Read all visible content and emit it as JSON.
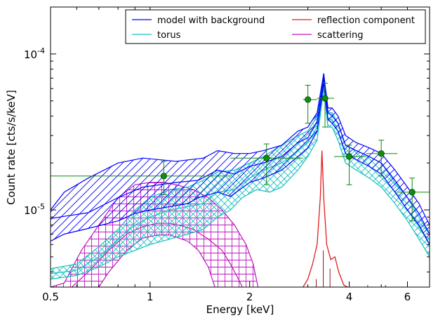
{
  "chart_data": {
    "type": "line",
    "xlabel": "Energy [keV]",
    "ylabel": "Count rate [cts/s/keV]",
    "xscale": "log",
    "yscale": "log",
    "xlim": [
      0.5,
      7.0
    ],
    "ylim": [
      3.2e-06,
      0.0002
    ],
    "x_ticks": [
      {
        "value": 0.5,
        "label": "0.5"
      },
      {
        "value": 1,
        "label": "1"
      },
      {
        "value": 2,
        "label": "2"
      },
      {
        "value": 4,
        "label": "4"
      },
      {
        "value": 6,
        "label": "6"
      }
    ],
    "y_ticks": [
      {
        "value": 1e-05,
        "base": "10",
        "exp": "-5"
      },
      {
        "value": 0.0001,
        "base": "10",
        "exp": "-4"
      }
    ],
    "legend_position": "top-right",
    "colors": {
      "model": "#0000ff",
      "torus": "#17bfbf",
      "reflection": "#e31b1b",
      "scattering": "#bf17bf",
      "data": "#0c8a0c",
      "thin_lines": "#8b1a1a"
    },
    "series": [
      {
        "name": "model with background",
        "band_upper": [
          [
            0.5,
            1e-05
          ],
          [
            0.55,
            1.3e-05
          ],
          [
            0.65,
            1.6e-05
          ],
          [
            0.8,
            2e-05
          ],
          [
            0.95,
            2.15e-05
          ],
          [
            1.2,
            2.05e-05
          ],
          [
            1.45,
            2.15e-05
          ],
          [
            1.6,
            2.4e-05
          ],
          [
            1.8,
            2.3e-05
          ],
          [
            2.0,
            2.3e-05
          ],
          [
            2.2,
            2.4e-05
          ],
          [
            2.5,
            2.6e-05
          ],
          [
            2.8,
            3.2e-05
          ],
          [
            3.0,
            3.4e-05
          ],
          [
            3.2,
            4.2e-05
          ],
          [
            3.35,
            7.5e-05
          ],
          [
            3.45,
            4.5e-05
          ],
          [
            3.55,
            4.5e-05
          ],
          [
            3.7,
            4e-05
          ],
          [
            3.9,
            3e-05
          ],
          [
            4.2,
            2.7e-05
          ],
          [
            4.6,
            2.5e-05
          ],
          [
            5.0,
            2.3e-05
          ],
          [
            5.5,
            1.8e-05
          ],
          [
            6.0,
            1.4e-05
          ],
          [
            6.5,
            1.1e-05
          ],
          [
            7.0,
            8e-06
          ]
        ],
        "band_lower": [
          [
            0.5,
            6.3e-06
          ],
          [
            0.55,
            7e-06
          ],
          [
            0.65,
            7.6e-06
          ],
          [
            0.8,
            8.5e-06
          ],
          [
            0.9,
            9.5e-06
          ],
          [
            1.0,
            1e-05
          ],
          [
            1.15,
            1.05e-05
          ],
          [
            1.3,
            1.1e-05
          ],
          [
            1.4,
            1.2e-05
          ],
          [
            1.6,
            1.3e-05
          ],
          [
            1.75,
            1.22e-05
          ],
          [
            2.0,
            1.5e-05
          ],
          [
            2.2,
            1.6e-05
          ],
          [
            2.5,
            1.8e-05
          ],
          [
            2.8,
            2.2e-05
          ],
          [
            3.0,
            2.5e-05
          ],
          [
            3.2,
            3.2e-05
          ],
          [
            3.35,
            6.5e-05
          ],
          [
            3.45,
            3.8e-05
          ],
          [
            3.55,
            3.6e-05
          ],
          [
            3.7,
            3.2e-05
          ],
          [
            3.9,
            2.3e-05
          ],
          [
            4.2,
            2.1e-05
          ],
          [
            4.6,
            1.9e-05
          ],
          [
            5.0,
            1.7e-05
          ],
          [
            5.5,
            1.3e-05
          ],
          [
            6.0,
            1e-05
          ],
          [
            6.5,
            8e-06
          ],
          [
            7.0,
            6e-06
          ]
        ],
        "median": [
          [
            0.5,
            8.8e-06
          ],
          [
            0.55,
            9.1e-06
          ],
          [
            0.65,
            9.6e-06
          ],
          [
            0.8,
            1.2e-05
          ],
          [
            0.95,
            1.4e-05
          ],
          [
            1.2,
            1.5e-05
          ],
          [
            1.4,
            1.55e-05
          ],
          [
            1.6,
            1.8e-05
          ],
          [
            1.8,
            1.7e-05
          ],
          [
            2.0,
            1.9e-05
          ],
          [
            2.2,
            2e-05
          ],
          [
            2.5,
            2.2e-05
          ],
          [
            2.8,
            2.7e-05
          ],
          [
            3.0,
            2.9e-05
          ],
          [
            3.2,
            3.7e-05
          ],
          [
            3.35,
            7e-05
          ],
          [
            3.45,
            4.2e-05
          ],
          [
            3.55,
            4e-05
          ],
          [
            3.7,
            3.6e-05
          ],
          [
            3.9,
            2.6e-05
          ],
          [
            4.2,
            2.4e-05
          ],
          [
            4.6,
            2.2e-05
          ],
          [
            5.0,
            2e-05
          ],
          [
            5.5,
            1.55e-05
          ],
          [
            6.0,
            1.2e-05
          ],
          [
            6.5,
            9.5e-06
          ],
          [
            7.0,
            7e-06
          ]
        ]
      },
      {
        "name": "torus",
        "band_upper": [
          [
            0.5,
            4.2e-06
          ],
          [
            0.6,
            4.5e-06
          ],
          [
            0.7,
            5.8e-06
          ],
          [
            0.8,
            7.5e-06
          ],
          [
            0.9,
            1e-05
          ],
          [
            1.0,
            1.2e-05
          ],
          [
            1.15,
            1.35e-05
          ],
          [
            1.3,
            1.4e-05
          ],
          [
            1.45,
            1.55e-05
          ],
          [
            1.6,
            1.75e-05
          ],
          [
            1.8,
            1.8e-05
          ],
          [
            2.0,
            2e-05
          ],
          [
            2.2,
            2.2e-05
          ],
          [
            2.5,
            2.6e-05
          ],
          [
            2.8,
            3e-05
          ],
          [
            3.0,
            3.2e-05
          ],
          [
            3.2,
            4e-05
          ],
          [
            3.35,
            7.5e-05
          ],
          [
            3.45,
            4.2e-05
          ],
          [
            3.55,
            4.2e-05
          ],
          [
            3.7,
            3.6e-05
          ],
          [
            3.9,
            2.6e-05
          ],
          [
            4.2,
            2.4e-05
          ],
          [
            4.6,
            2.2e-05
          ],
          [
            5.0,
            2e-05
          ],
          [
            5.5,
            1.5e-05
          ],
          [
            6.0,
            1.2e-05
          ],
          [
            6.5,
            9e-06
          ],
          [
            7.0,
            7e-06
          ]
        ],
        "band_lower": [
          [
            0.5,
            3.6e-06
          ],
          [
            0.6,
            3.8e-06
          ],
          [
            0.7,
            4.3e-06
          ],
          [
            0.8,
            5e-06
          ],
          [
            0.9,
            5.5e-06
          ],
          [
            1.0,
            6e-06
          ],
          [
            1.15,
            6.5e-06
          ],
          [
            1.3,
            7e-06
          ],
          [
            1.45,
            7.5e-06
          ],
          [
            1.6,
            9e-06
          ],
          [
            1.75,
            1e-05
          ],
          [
            1.9,
            1.2e-05
          ],
          [
            2.1,
            1.35e-05
          ],
          [
            2.3,
            1.3e-05
          ],
          [
            2.5,
            1.4e-05
          ],
          [
            2.8,
            1.8e-05
          ],
          [
            3.0,
            2.2e-05
          ],
          [
            3.2,
            2.8e-05
          ],
          [
            3.35,
            6e-05
          ],
          [
            3.45,
            3.4e-05
          ],
          [
            3.55,
            3.4e-05
          ],
          [
            3.7,
            2.8e-05
          ],
          [
            3.9,
            2e-05
          ],
          [
            4.2,
            1.8e-05
          ],
          [
            4.6,
            1.6e-05
          ],
          [
            5.0,
            1.4e-05
          ],
          [
            5.5,
            1.1e-05
          ],
          [
            6.0,
            8.5e-06
          ],
          [
            6.5,
            6.5e-06
          ],
          [
            7.0,
            5e-06
          ]
        ],
        "median": [
          [
            0.5,
            3.9e-06
          ],
          [
            0.6,
            4.1e-06
          ],
          [
            0.7,
            5e-06
          ],
          [
            0.8,
            6.5e-06
          ],
          [
            0.9,
            8e-06
          ],
          [
            1.0,
            9e-06
          ],
          [
            1.15,
            1e-05
          ],
          [
            1.3,
            1.05e-05
          ],
          [
            1.45,
            1.1e-05
          ],
          [
            1.6,
            1.3e-05
          ],
          [
            1.8,
            1.35e-05
          ],
          [
            2.0,
            1.6e-05
          ],
          [
            2.2,
            1.8e-05
          ],
          [
            2.5,
            2e-05
          ],
          [
            2.8,
            2.4e-05
          ],
          [
            3.0,
            2.7e-05
          ],
          [
            3.2,
            3.4e-05
          ],
          [
            3.35,
            6.8e-05
          ],
          [
            3.45,
            3.8e-05
          ],
          [
            3.55,
            3.8e-05
          ],
          [
            3.7,
            3.2e-05
          ],
          [
            3.9,
            2.3e-05
          ],
          [
            4.2,
            2.1e-05
          ],
          [
            4.6,
            1.9e-05
          ],
          [
            5.0,
            1.7e-05
          ],
          [
            5.5,
            1.3e-05
          ],
          [
            6.0,
            1e-05
          ],
          [
            6.5,
            7.8e-06
          ],
          [
            7.0,
            6e-06
          ]
        ]
      },
      {
        "name": "reflection component",
        "line": [
          [
            2.9,
            3.2e-06
          ],
          [
            3.0,
            3.6e-06
          ],
          [
            3.1,
            4.5e-06
          ],
          [
            3.2,
            6e-06
          ],
          [
            3.27,
            1.2e-05
          ],
          [
            3.31,
            2.4e-05
          ],
          [
            3.35,
            1.2e-05
          ],
          [
            3.42,
            6e-06
          ],
          [
            3.52,
            4.8e-06
          ],
          [
            3.62,
            5e-06
          ],
          [
            3.72,
            4e-06
          ],
          [
            3.85,
            3.3e-06
          ],
          [
            3.95,
            3.2e-06
          ]
        ]
      },
      {
        "name": "scattering",
        "band_upper": [
          [
            0.5,
            3.2e-06
          ],
          [
            0.55,
            3.4e-06
          ],
          [
            0.62,
            5.5e-06
          ],
          [
            0.7,
            8e-06
          ],
          [
            0.8,
            1.2e-05
          ],
          [
            0.9,
            1.45e-05
          ],
          [
            1.0,
            1.5e-05
          ],
          [
            1.1,
            1.5e-05
          ],
          [
            1.2,
            1.45e-05
          ],
          [
            1.35,
            1.35e-05
          ],
          [
            1.5,
            1.2e-05
          ],
          [
            1.65,
            1e-05
          ],
          [
            1.8,
            8e-06
          ],
          [
            1.95,
            6e-06
          ],
          [
            2.05,
            4.5e-06
          ],
          [
            2.12,
            3.2e-06
          ]
        ],
        "band_lower": [
          [
            0.7,
            3.2e-06
          ],
          [
            0.75,
            4e-06
          ],
          [
            0.85,
            5.5e-06
          ],
          [
            0.95,
            6.6e-06
          ],
          [
            1.05,
            6.9e-06
          ],
          [
            1.15,
            6.9e-06
          ],
          [
            1.3,
            6.3e-06
          ],
          [
            1.4,
            5.5e-06
          ],
          [
            1.5,
            4.3e-06
          ],
          [
            1.57,
            3.2e-06
          ]
        ],
        "median": [
          [
            0.58,
            3.2e-06
          ],
          [
            0.65,
            4e-06
          ],
          [
            0.75,
            5.5e-06
          ],
          [
            0.85,
            7e-06
          ],
          [
            0.95,
            7.8e-06
          ],
          [
            1.05,
            8.2e-06
          ],
          [
            1.15,
            8.2e-06
          ],
          [
            1.25,
            7.9e-06
          ],
          [
            1.35,
            7.5e-06
          ],
          [
            1.5,
            6.5e-06
          ],
          [
            1.65,
            5.5e-06
          ],
          [
            1.75,
            4.5e-06
          ],
          [
            1.85,
            3.6e-06
          ],
          [
            1.9,
            3.2e-06
          ]
        ]
      }
    ],
    "data_points": [
      {
        "x": 1.1,
        "y": 1.65e-05,
        "xerr": [
          0.5,
          1.75
        ],
        "yerr": [
          1.25e-05,
          2.05e-05
        ]
      },
      {
        "x": 2.25,
        "y": 2.15e-05,
        "xerr": [
          1.75,
          2.9
        ],
        "yerr": [
          1.45e-05,
          2.65e-05
        ]
      },
      {
        "x": 3.0,
        "y": 5.1e-05,
        "xerr": [
          2.9,
          3.2
        ],
        "yerr": [
          3.6e-05,
          6.3e-05
        ]
      },
      {
        "x": 3.38,
        "y": 5.2e-05,
        "xerr": [
          3.2,
          3.6
        ],
        "yerr": [
          3.4e-05,
          6.5e-05
        ]
      },
      {
        "x": 4.0,
        "y": 2.2e-05,
        "xerr": [
          3.6,
          4.5
        ],
        "yerr": [
          1.45e-05,
          2.6e-05
        ]
      },
      {
        "x": 5.0,
        "y": 2.3e-05,
        "xerr": [
          4.5,
          5.6
        ],
        "yerr": [
          1.65e-05,
          2.8e-05
        ]
      },
      {
        "x": 6.2,
        "y": 1.3e-05,
        "xerr": [
          5.6,
          7.0
        ],
        "yerr": [
          8.5e-06,
          1.6e-05
        ]
      }
    ],
    "model_lines": [
      {
        "x": 3.18,
        "y": 3.6e-06
      },
      {
        "x": 3.34,
        "y": 5.5e-06
      },
      {
        "x": 3.5,
        "y": 4.2e-06
      },
      {
        "x": 4.55,
        "y": 3.3e-06
      },
      {
        "x": 5.15,
        "y": 3.3e-06
      }
    ]
  }
}
